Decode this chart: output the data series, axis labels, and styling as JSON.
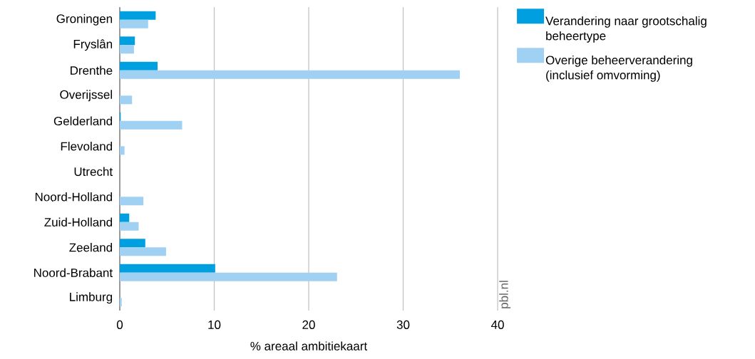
{
  "chart_data": {
    "type": "bar",
    "orientation": "horizontal",
    "xlabel": "% areaal ambitiekaart",
    "categories": [
      "Groningen",
      "Fryslân",
      "Drenthe",
      "Overijssel",
      "Gelderland",
      "Flevoland",
      "Utrecht",
      "Noord-Holland",
      "Zuid-Holland",
      "Zeeland",
      "Noord-Brabant",
      "Limburg"
    ],
    "series": [
      {
        "name": "Verandering naar grootschalig beheertype",
        "color": "#00a0e0",
        "values": [
          3.8,
          1.6,
          4.0,
          0,
          0.1,
          0,
          0,
          0,
          1.0,
          2.7,
          10.1,
          0
        ]
      },
      {
        "name": "Overige beheerverandering (inclusief omvorming)",
        "color": "#a0d0f2",
        "values": [
          3.0,
          1.5,
          36.0,
          1.3,
          6.6,
          0.5,
          0,
          2.5,
          2.0,
          4.9,
          23.0,
          0.2
        ]
      }
    ],
    "xlim": [
      0,
      40
    ],
    "xticks": [
      0,
      10,
      20,
      30,
      40
    ],
    "grid": "x",
    "legend": "top right",
    "annotations": [
      "pbl.nl"
    ]
  }
}
